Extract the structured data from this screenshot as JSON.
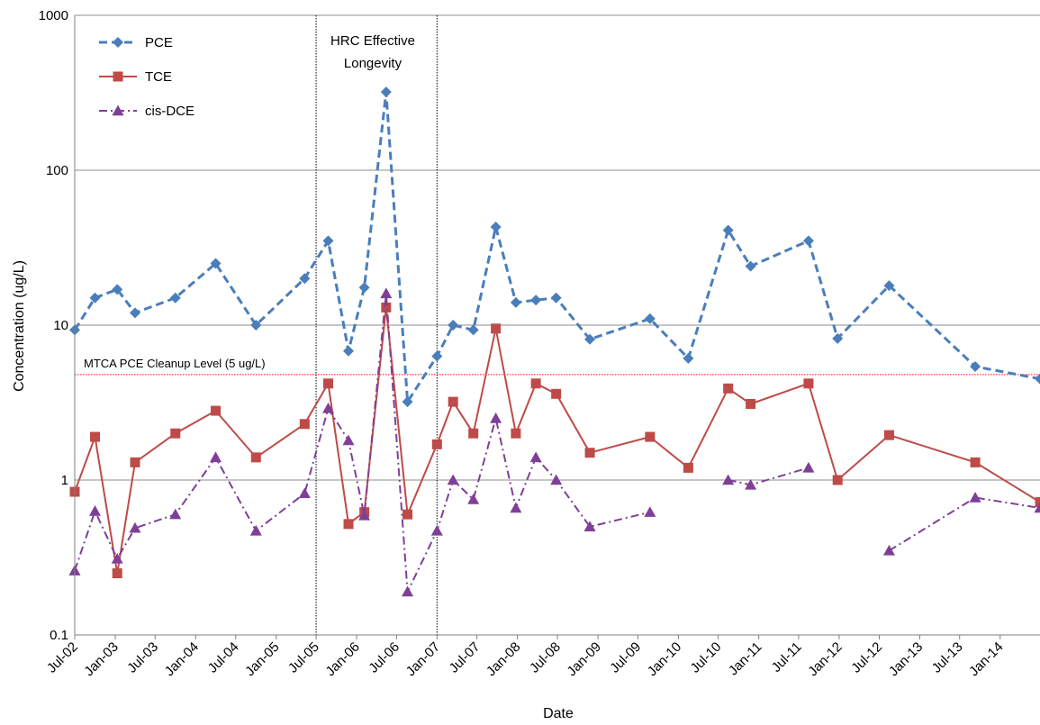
{
  "chart_data": {
    "type": "line",
    "xlabel": "Date",
    "ylabel": "Concentration (ug/L)",
    "yscale": "log",
    "ylim": [
      0.1,
      1000
    ],
    "xlim": [
      "2002-07-01",
      "2014-07-01"
    ],
    "grid": "horizontal",
    "legend_position": "top-left",
    "y_ticks": [
      {
        "value": 0.1,
        "label": "0.1"
      },
      {
        "value": 1,
        "label": "1"
      },
      {
        "value": 10,
        "label": "10"
      },
      {
        "value": 100,
        "label": "100"
      },
      {
        "value": 1000,
        "label": "1000"
      }
    ],
    "x_ticks": [
      {
        "date": "2002-07-01",
        "label": "Jul-02"
      },
      {
        "date": "2003-01-01",
        "label": "Jan-03"
      },
      {
        "date": "2003-07-01",
        "label": "Jul-03"
      },
      {
        "date": "2004-01-01",
        "label": "Jan-04"
      },
      {
        "date": "2004-07-01",
        "label": "Jul-04"
      },
      {
        "date": "2005-01-01",
        "label": "Jan-05"
      },
      {
        "date": "2005-07-01",
        "label": "Jul-05"
      },
      {
        "date": "2006-01-01",
        "label": "Jan-06"
      },
      {
        "date": "2006-07-01",
        "label": "Jul-06"
      },
      {
        "date": "2007-01-01",
        "label": "Jan-07"
      },
      {
        "date": "2007-07-01",
        "label": "Jul-07"
      },
      {
        "date": "2008-01-01",
        "label": "Jan-08"
      },
      {
        "date": "2008-07-01",
        "label": "Jul-08"
      },
      {
        "date": "2009-01-01",
        "label": "Jan-09"
      },
      {
        "date": "2009-07-01",
        "label": "Jul-09"
      },
      {
        "date": "2010-01-01",
        "label": "Jan-10"
      },
      {
        "date": "2010-07-01",
        "label": "Jul-10"
      },
      {
        "date": "2011-01-01",
        "label": "Jan-11"
      },
      {
        "date": "2011-07-01",
        "label": "Jul-11"
      },
      {
        "date": "2012-01-01",
        "label": "Jan-12"
      },
      {
        "date": "2012-07-01",
        "label": "Jul-12"
      },
      {
        "date": "2013-01-01",
        "label": "Jan-13"
      },
      {
        "date": "2013-07-01",
        "label": "Jul-13"
      },
      {
        "date": "2014-01-01",
        "label": "Jan-14"
      }
    ],
    "series": [
      {
        "name": "PCE",
        "color": "#4A7EBB",
        "marker": "diamond",
        "line_style": "dashed",
        "points": [
          [
            "2002-07-01",
            9.3
          ],
          [
            "2002-10-01",
            15
          ],
          [
            "2003-01-10",
            17
          ],
          [
            "2003-04-01",
            12
          ],
          [
            "2003-10-01",
            15
          ],
          [
            "2004-04-01",
            25
          ],
          [
            "2004-10-01",
            10
          ],
          [
            "2005-05-10",
            20
          ],
          [
            "2005-08-25",
            35
          ],
          [
            "2005-11-25",
            6.8
          ],
          [
            "2006-02-05",
            17.5
          ],
          [
            "2006-05-15",
            320
          ],
          [
            "2006-08-20",
            3.2
          ],
          [
            "2007-01-01",
            6.3
          ],
          [
            "2007-03-15",
            10
          ],
          [
            "2007-06-15",
            9.3
          ],
          [
            "2007-09-25",
            43
          ],
          [
            "2007-12-25",
            14
          ],
          [
            "2008-03-25",
            14.5
          ],
          [
            "2008-06-25",
            15
          ],
          [
            "2008-11-25",
            8.1
          ],
          [
            "2009-08-25",
            11
          ],
          [
            "2010-02-15",
            6.1
          ],
          [
            "2010-08-15",
            41
          ],
          [
            "2010-11-25",
            24
          ],
          [
            "2011-08-15",
            35
          ],
          [
            "2011-12-25",
            8.2
          ],
          [
            "2012-08-15",
            18
          ],
          [
            "2013-09-10",
            5.4
          ],
          [
            "2014-07-01",
            4.5
          ]
        ]
      },
      {
        "name": "TCE",
        "color": "#BE4B48",
        "marker": "square",
        "line_style": "solid",
        "points": [
          [
            "2002-07-01",
            0.84
          ],
          [
            "2002-10-01",
            1.9
          ],
          [
            "2003-01-10",
            0.25
          ],
          [
            "2003-04-01",
            1.3
          ],
          [
            "2003-10-01",
            2.0
          ],
          [
            "2004-04-01",
            2.8
          ],
          [
            "2004-10-01",
            1.4
          ],
          [
            "2005-05-10",
            2.3
          ],
          [
            "2005-08-25",
            4.2
          ],
          [
            "2005-11-25",
            0.52
          ],
          [
            "2006-02-05",
            0.62
          ],
          [
            "2006-05-15",
            13
          ],
          [
            "2006-08-20",
            0.6
          ],
          [
            "2007-01-01",
            1.7
          ],
          [
            "2007-03-15",
            3.2
          ],
          [
            "2007-06-15",
            2.0
          ],
          [
            "2007-09-25",
            9.5
          ],
          [
            "2007-12-25",
            2.0
          ],
          [
            "2008-03-25",
            4.2
          ],
          [
            "2008-06-25",
            3.6
          ],
          [
            "2008-11-25",
            1.5
          ],
          [
            "2009-08-25",
            1.9
          ],
          [
            "2010-02-15",
            1.2
          ],
          [
            "2010-08-15",
            3.9
          ],
          [
            "2010-11-25",
            3.1
          ],
          [
            "2011-08-15",
            4.2
          ],
          [
            "2011-12-25",
            1.0
          ],
          [
            "2012-08-15",
            1.95
          ],
          [
            "2013-09-10",
            1.3
          ],
          [
            "2014-07-01",
            0.72
          ]
        ]
      },
      {
        "name": "cis-DCE",
        "color": "#7F3F98",
        "marker": "triangle",
        "line_style": "dashdot",
        "points": [
          [
            "2002-07-01",
            0.26
          ],
          [
            "2002-10-01",
            0.63
          ],
          [
            "2003-01-10",
            0.31
          ],
          [
            "2003-04-01",
            0.49
          ],
          [
            "2003-10-01",
            0.6
          ],
          [
            "2004-04-01",
            1.4
          ],
          [
            "2004-10-01",
            0.47
          ],
          [
            "2005-05-10",
            0.82
          ],
          [
            "2005-08-25",
            2.9
          ],
          [
            "2005-11-25",
            1.8
          ],
          [
            "2006-02-05",
            0.59
          ],
          [
            "2006-05-15",
            16
          ],
          [
            "2006-08-20",
            0.19
          ],
          [
            "2007-01-01",
            0.47
          ],
          [
            "2007-03-15",
            1.0
          ],
          [
            "2007-06-15",
            0.75
          ],
          [
            "2007-09-25",
            2.5
          ],
          [
            "2007-12-25",
            0.66
          ],
          [
            "2008-03-25",
            1.4
          ],
          [
            "2008-06-25",
            1.0
          ],
          [
            "2008-11-25",
            0.5
          ],
          [
            "2009-08-25",
            0.62
          ],
          null,
          [
            "2010-08-15",
            1.0
          ],
          [
            "2010-11-25",
            0.93
          ],
          [
            "2011-08-15",
            1.2
          ],
          null,
          [
            "2012-08-15",
            0.35
          ],
          [
            "2013-09-10",
            0.77
          ],
          [
            "2014-07-01",
            0.66
          ]
        ]
      }
    ],
    "reference_line": {
      "label": "MTCA PCE Cleanup Level (5 ug/L)",
      "value": 4.8,
      "color": "#FF0000"
    },
    "shaded_period": {
      "label_line1": "HRC Effective",
      "label_line2": "Longevity",
      "start": "2005-07-01",
      "end": "2007-01-01"
    }
  }
}
